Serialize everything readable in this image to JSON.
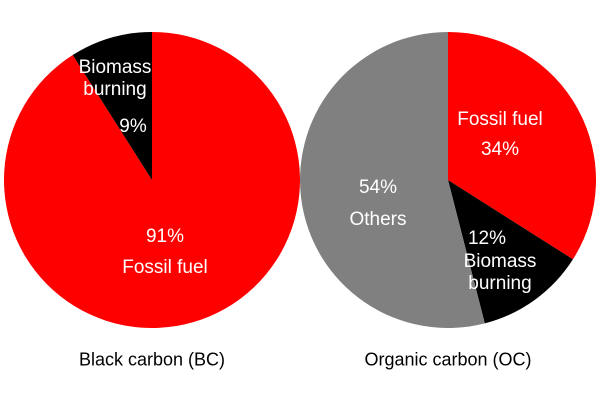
{
  "chart_data": [
    {
      "type": "pie",
      "title": "Black carbon (BC)",
      "categories": [
        "Fossil fuel",
        "Biomass burning"
      ],
      "values": [
        91,
        9
      ],
      "value_labels": [
        "91%",
        "9%"
      ],
      "colors": [
        "#ff0000",
        "#000000"
      ]
    },
    {
      "type": "pie",
      "title": "Organic carbon (OC)",
      "categories": [
        "Fossil fuel",
        "Biomass burning",
        "Others"
      ],
      "values": [
        34,
        12,
        54
      ],
      "value_labels": [
        "34%",
        "12%",
        "54%"
      ],
      "colors": [
        "#ff0000",
        "#000000",
        "#808080"
      ]
    }
  ]
}
